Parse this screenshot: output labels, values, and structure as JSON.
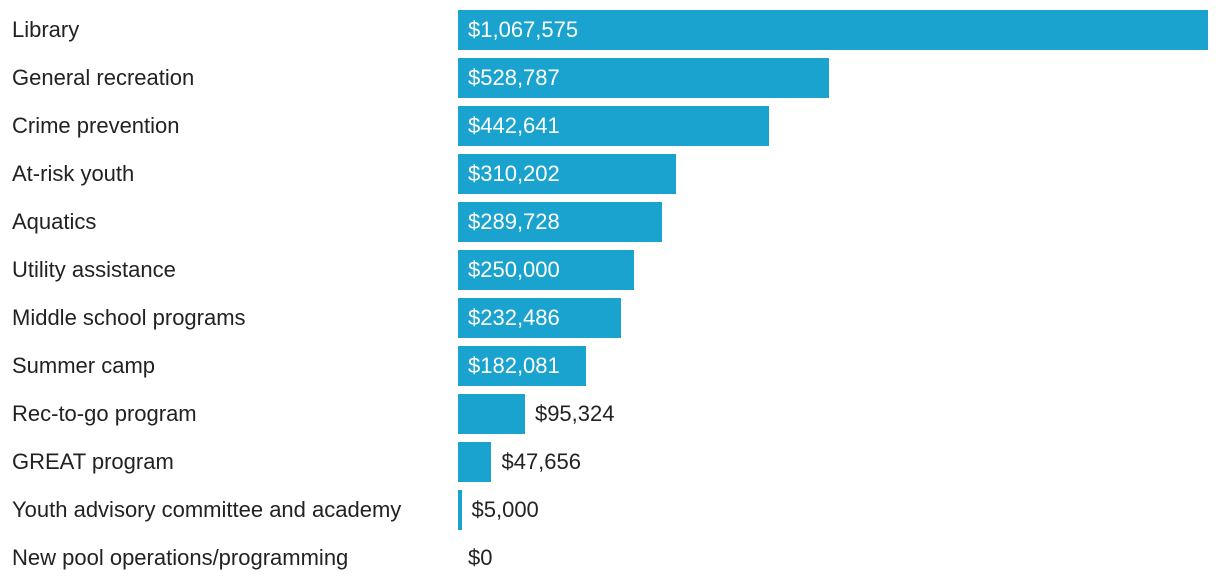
{
  "chart_data": {
    "type": "bar",
    "orientation": "horizontal",
    "title": "",
    "xlabel": "",
    "ylabel": "",
    "bar_color": "#1ba3d0",
    "categories": [
      "Library",
      "General recreation",
      "Crime prevention",
      "At-risk youth",
      "Aquatics",
      "Utility assistance",
      "Middle school programs",
      "Summer camp",
      "Rec-to-go program",
      "GREAT program",
      "Youth advisory committee and academy",
      "New pool operations/programming"
    ],
    "values": [
      1067575,
      528787,
      442641,
      310202,
      289728,
      250000,
      232486,
      182081,
      95324,
      47656,
      5000,
      0
    ],
    "value_labels": [
      "$1,067,575",
      "$528,787",
      "$442,641",
      "$310,202",
      "$289,728",
      "$250,000",
      "$232,486",
      "$182,081",
      "$95,324",
      "$47,656",
      "$5,000",
      "$0"
    ],
    "xlim": [
      0,
      1067575
    ],
    "grid": false,
    "legend": "none"
  }
}
